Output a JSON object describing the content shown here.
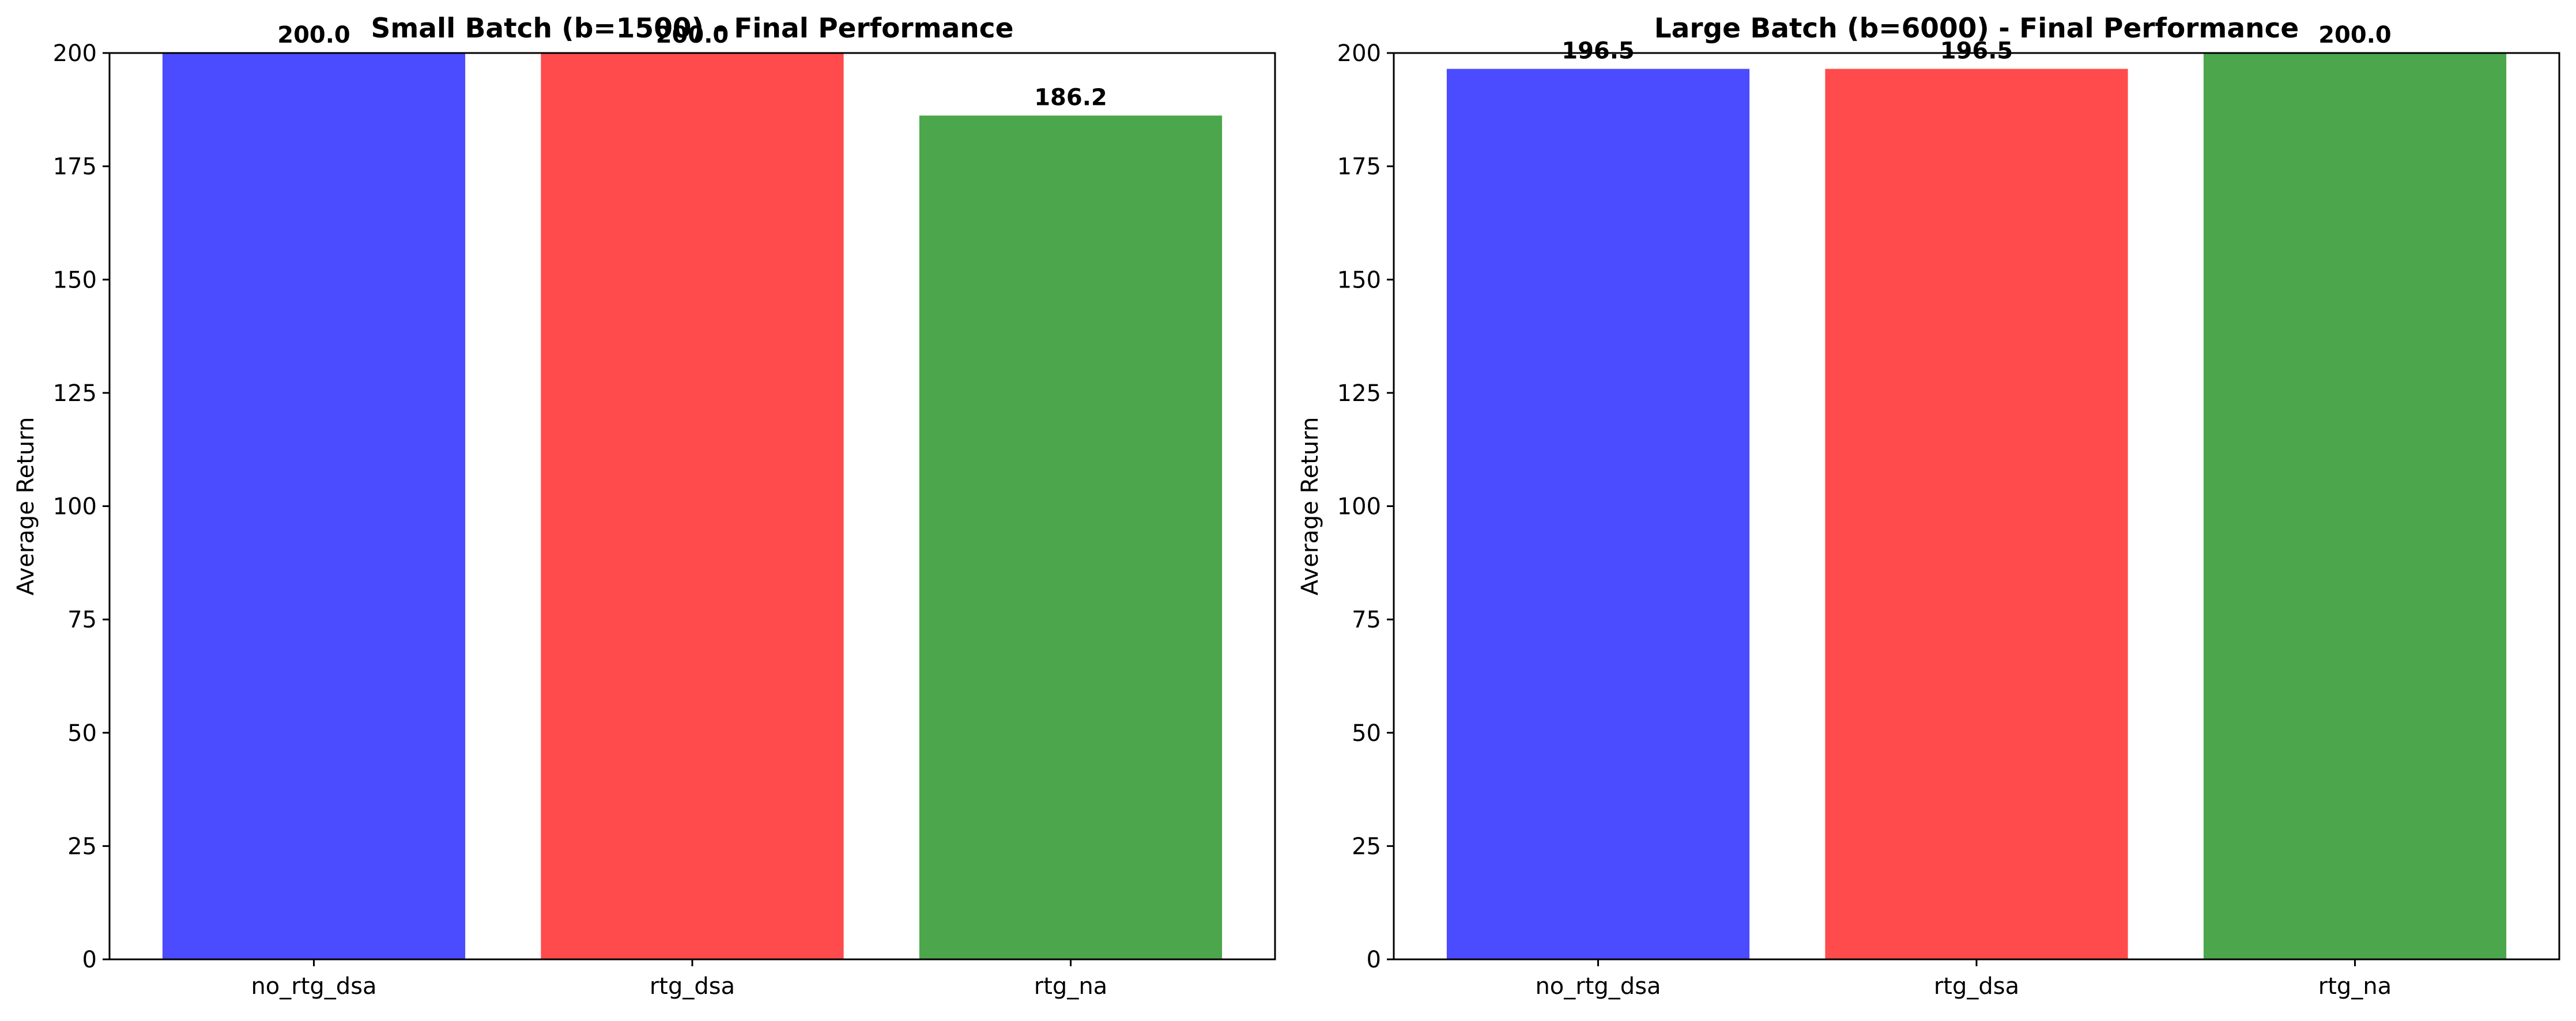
{
  "chart_data": [
    {
      "type": "bar",
      "title": "Small Batch (b=1500) - Final Performance",
      "xlabel": "",
      "ylabel": "Average Return",
      "categories": [
        "no_rtg_dsa",
        "rtg_dsa",
        "rtg_na"
      ],
      "values": [
        200.0,
        200.0,
        186.2
      ],
      "value_labels": [
        "200.0",
        "200.0",
        "186.2"
      ],
      "colors": [
        "#4b4bff",
        "#ff4b4b",
        "#4ca64c"
      ],
      "ylim": [
        0,
        200
      ],
      "yticks": [
        0,
        25,
        50,
        75,
        100,
        125,
        150,
        175,
        200
      ],
      "grid": false
    },
    {
      "type": "bar",
      "title": "Large Batch (b=6000) - Final Performance",
      "xlabel": "",
      "ylabel": "Average Return",
      "categories": [
        "no_rtg_dsa",
        "rtg_dsa",
        "rtg_na"
      ],
      "values": [
        196.5,
        196.5,
        200.0
      ],
      "value_labels": [
        "196.5",
        "196.5",
        "200.0"
      ],
      "colors": [
        "#4b4bff",
        "#ff4b4b",
        "#4ca64c"
      ],
      "ylim": [
        0,
        200
      ],
      "yticks": [
        0,
        25,
        50,
        75,
        100,
        125,
        150,
        175,
        200
      ],
      "grid": false
    }
  ]
}
